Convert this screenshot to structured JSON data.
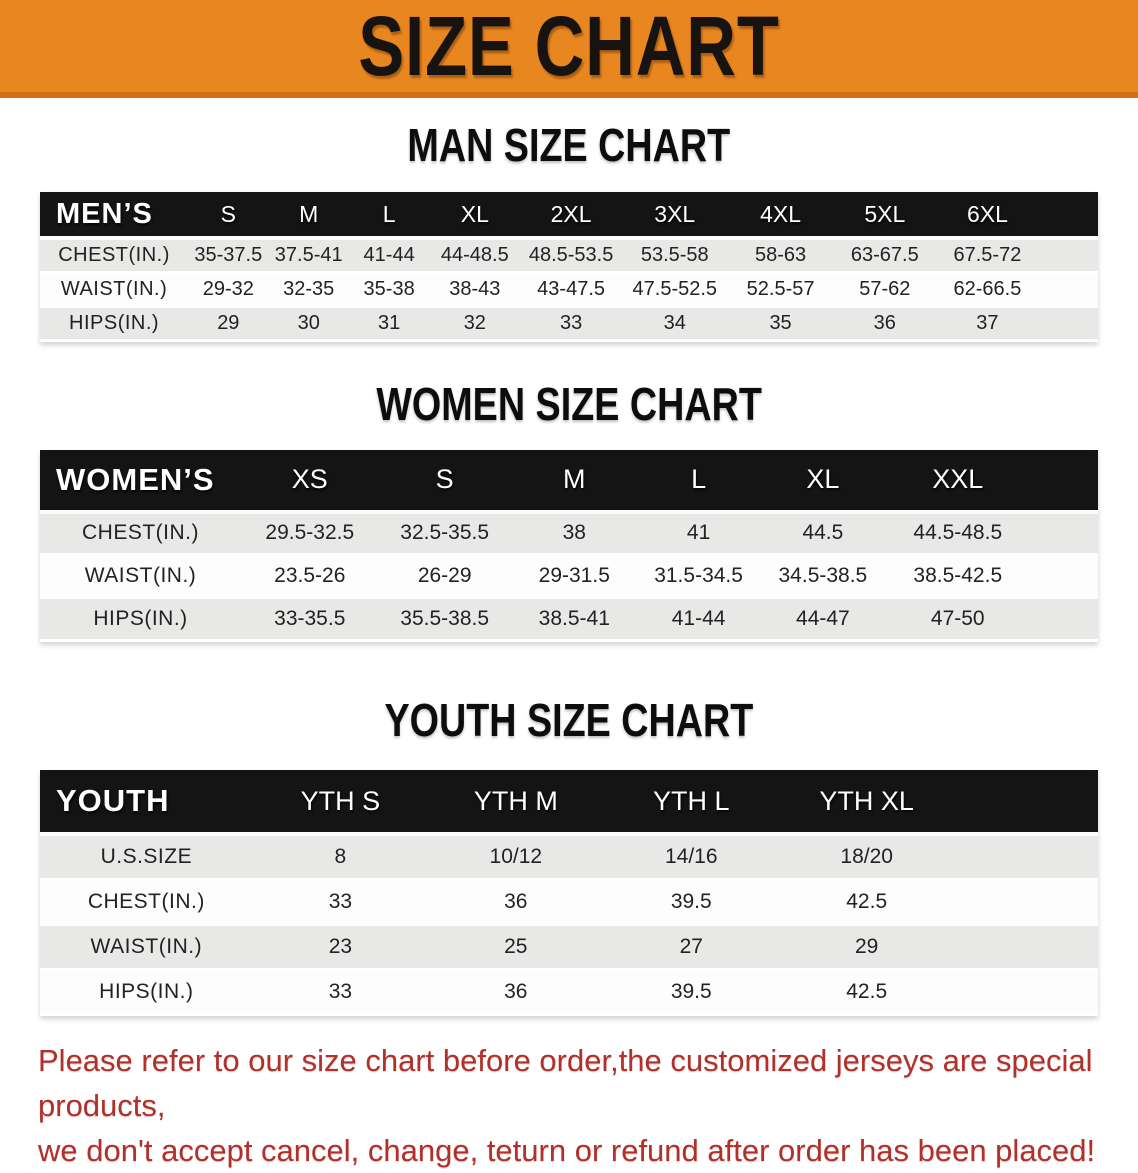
{
  "banner": {
    "title": "SIZE CHART",
    "bg_color": "#E8861F",
    "edge_color": "#D06F15",
    "text_color": "#171310"
  },
  "sections": [
    {
      "id": "men",
      "heading": "MAN SIZE CHART",
      "table": {
        "label": "MEN’S",
        "columns": [
          "S",
          "M",
          "L",
          "XL",
          "2XL",
          "3XL",
          "4XL",
          "5XL",
          "6XL"
        ],
        "rows": [
          {
            "label": "CHEST(IN.)",
            "values": [
              "35-37.5",
              "37.5-41",
              "41-44",
              "44-48.5",
              "48.5-53.5",
              "53.5-58",
              "58-63",
              "63-67.5",
              "67.5-72"
            ]
          },
          {
            "label": "WAIST(IN.)",
            "values": [
              "29-32",
              "32-35",
              "35-38",
              "38-43",
              "43-47.5",
              "47.5-52.5",
              "52.5-57",
              "57-62",
              "62-66.5"
            ]
          },
          {
            "label": "HIPS(IN.)",
            "values": [
              "29",
              "30",
              "31",
              "32",
              "33",
              "34",
              "35",
              "36",
              "37"
            ]
          }
        ]
      }
    },
    {
      "id": "women",
      "heading": "WOMEN SIZE CHART",
      "table": {
        "label": "WOMEN’S",
        "columns": [
          "XS",
          "S",
          "M",
          "L",
          "XL",
          "XXL"
        ],
        "rows": [
          {
            "label": "CHEST(IN.)",
            "values": [
              "29.5-32.5",
              "32.5-35.5",
              "38",
              "41",
              "44.5",
              "44.5-48.5"
            ]
          },
          {
            "label": "WAIST(IN.)",
            "values": [
              "23.5-26",
              "26-29",
              "29-31.5",
              "31.5-34.5",
              "34.5-38.5",
              "38.5-42.5"
            ]
          },
          {
            "label": "HIPS(IN.)",
            "values": [
              "33-35.5",
              "35.5-38.5",
              "38.5-41",
              "41-44",
              "44-47",
              "47-50"
            ]
          }
        ]
      }
    },
    {
      "id": "youth",
      "heading": "YOUTH SIZE CHART",
      "table": {
        "label": "YOUTH",
        "columns": [
          "YTH S",
          "YTH M",
          "YTH L",
          "YTH XL"
        ],
        "rows": [
          {
            "label": "U.S.SIZE",
            "values": [
              "8",
              "10/12",
              "14/16",
              "18/20"
            ]
          },
          {
            "label": "CHEST(IN.)",
            "values": [
              "33",
              "36",
              "39.5",
              "42.5"
            ]
          },
          {
            "label": "WAIST(IN.)",
            "values": [
              "23",
              "25",
              "27",
              "29"
            ]
          },
          {
            "label": "HIPS(IN.)",
            "values": [
              "33",
              "36",
              "39.5",
              "42.5"
            ]
          }
        ]
      }
    }
  ],
  "disclaimer": {
    "line1": "Please refer to our size chart before order,the customized jerseys are special products,",
    "line2": "we don't accept cancel, change, teturn or refund after order has been placed!",
    "text_color": "#B2302A"
  },
  "colors": {
    "header_bg": "#141414",
    "header_text": "#FFFFFF",
    "row_alt_bg": "#E8E8E7",
    "row_bg": "#FDFDFD",
    "body_text": "#222222"
  }
}
